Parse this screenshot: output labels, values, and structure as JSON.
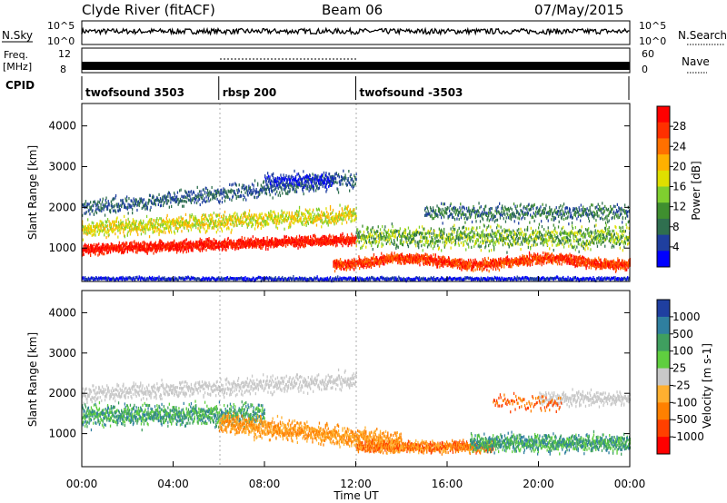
{
  "header": {
    "station": "Clyde River (fitACF)",
    "beam": "Beam 06",
    "date": "07/May/2015"
  },
  "nsky_panel": {
    "left_label": "N.Sky",
    "right_label": "N.Search",
    "left_ticks": [
      "10^5",
      "10^0"
    ],
    "right_ticks": [
      "10^5",
      "10^0"
    ]
  },
  "freq_panel": {
    "left_label_1": "Freq.",
    "left_label_2": "[MHz]",
    "right_label": "Nave",
    "left_ticks": [
      "12",
      "8"
    ],
    "right_ticks": [
      "60",
      "0"
    ]
  },
  "cpid": {
    "label": "CPID",
    "segments": [
      {
        "name": "twofsound 3503",
        "start_hr": 0,
        "end_hr": 6
      },
      {
        "name": "rbsp 200",
        "start_hr": 6,
        "end_hr": 12
      },
      {
        "name": "twofsound -3503",
        "start_hr": 12,
        "end_hr": 24
      }
    ]
  },
  "x_axis": {
    "title": "Time UT",
    "ticks": [
      "00:00",
      "04:00",
      "08:00",
      "12:00",
      "16:00",
      "20:00",
      "00:00"
    ]
  },
  "chart_data": [
    {
      "type": "heatmap",
      "name": "power",
      "ylabel": "Slant Range [km]",
      "ylim": [
        180,
        4550
      ],
      "xlim_hours": [
        0,
        24
      ],
      "yticks": [
        1000,
        2000,
        3000,
        4000
      ],
      "colorbar": {
        "title": "Power [dB]",
        "ticks": [
          "4",
          "8",
          "12",
          "16",
          "20",
          "24",
          "28"
        ],
        "colors": [
          "#0000ff",
          "#1f3f9f",
          "#2f6f4f",
          "#3f8f2f",
          "#7fcf2f",
          "#dfdf00",
          "#ffb000",
          "#ff7000",
          "#ff3000",
          "#ff0000"
        ]
      }
    },
    {
      "type": "heatmap",
      "name": "velocity",
      "ylabel": "Slant Range [km]",
      "ylim": [
        180,
        4550
      ],
      "xlim_hours": [
        0,
        24
      ],
      "yticks": [
        1000,
        2000,
        3000,
        4000
      ],
      "colorbar": {
        "title": "Velocity [m s-1]",
        "ticks": [
          "1000",
          "500",
          "100",
          "25",
          "-25",
          "-100",
          "-500",
          "-1000"
        ],
        "colors": [
          "#1f3fa0",
          "#2f7f9f",
          "#3f9f5f",
          "#5fcf3f",
          "#c8c8c8",
          "#ffb030",
          "#ff8000",
          "#ff4000",
          "#ff0000"
        ]
      }
    }
  ]
}
